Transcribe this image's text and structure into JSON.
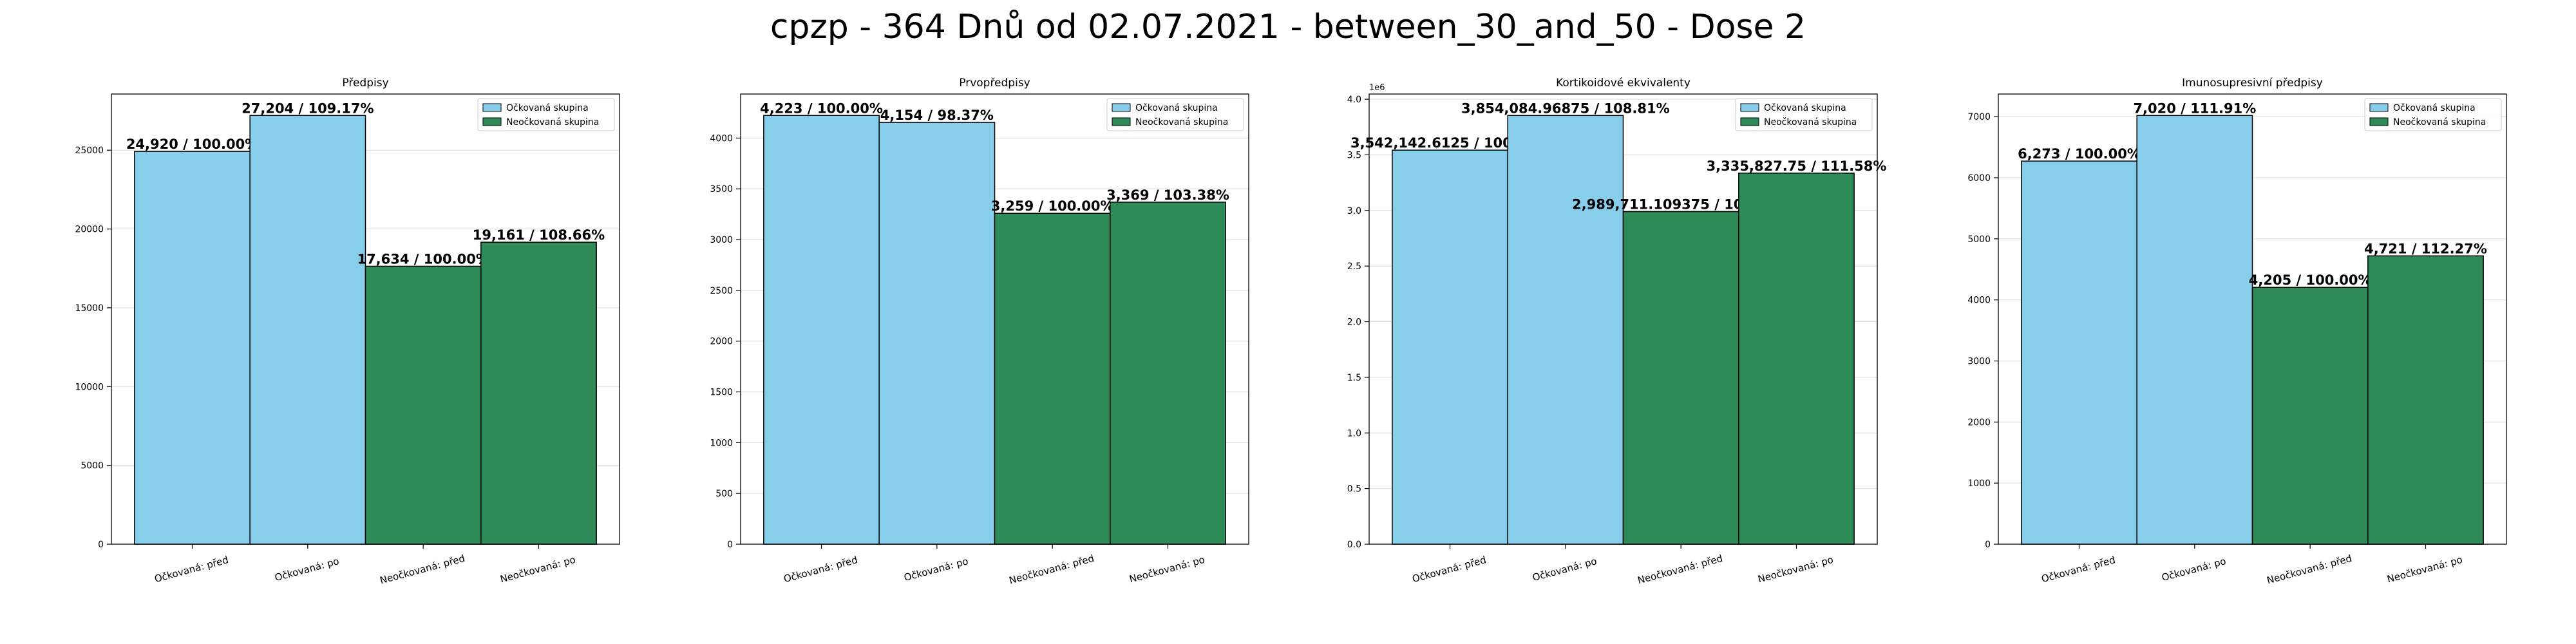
{
  "suptitle": "cpzp - 364 Dnů od 02.07.2021 - between_30_and_50 - Dose 2",
  "colors": {
    "vaccinated": "#87ceeb",
    "unvaccinated": "#2e8b57",
    "edge": "#000000",
    "grid": "#dddddd"
  },
  "legend": {
    "vaccinated": "Očkovaná skupina",
    "unvaccinated": "Neočkovaná skupina"
  },
  "chart_data": [
    {
      "type": "bar",
      "title": "Předpisy",
      "categories": [
        "Očkovaná: před",
        "Očkovaná: po",
        "Neočkovaná: před",
        "Neočkovaná: po"
      ],
      "values": [
        24920,
        27204,
        17634,
        19161
      ],
      "labels": [
        "24,920 / 100.00%",
        "27,204 / 109.17%",
        "17,634 / 100.00%",
        "19,161 / 108.66%"
      ],
      "ylim": [
        0,
        28564
      ],
      "yticks": [
        0,
        5000,
        10000,
        15000,
        20000,
        25000
      ],
      "ytick_labels": [
        "0",
        "5000",
        "10000",
        "15000",
        "20000",
        "25000"
      ],
      "offset_text": "",
      "grid": true,
      "legend_position": "top-right"
    },
    {
      "type": "bar",
      "title": "Prvopředpisy",
      "categories": [
        "Očkovaná: před",
        "Očkovaná: po",
        "Neočkovaná: před",
        "Neočkovaná: po"
      ],
      "values": [
        4223,
        4154,
        3259,
        3369
      ],
      "labels": [
        "4,223 / 100.00%",
        "4,154 / 98.37%",
        "3,259 / 100.00%",
        "3,369 / 103.38%"
      ],
      "ylim": [
        0,
        4434
      ],
      "yticks": [
        0,
        500,
        1000,
        1500,
        2000,
        2500,
        3000,
        3500,
        4000
      ],
      "ytick_labels": [
        "0",
        "500",
        "1000",
        "1500",
        "2000",
        "2500",
        "3000",
        "3500",
        "4000"
      ],
      "offset_text": "",
      "grid": true,
      "legend_position": "top-right"
    },
    {
      "type": "bar",
      "title": "Kortikoidové ekvivalenty",
      "categories": [
        "Očkovaná: před",
        "Očkovaná: po",
        "Neočkovaná: před",
        "Neočkovaná: po"
      ],
      "values": [
        3542142.6125,
        3854084.96875,
        2989711.109375,
        3335827.75
      ],
      "labels": [
        "3,542,142.6125 / 100.00%",
        "3,854,084.96875 / 108.81%",
        "2,989,711.109375 / 100.00%",
        "3,335,827.75 / 111.58%"
      ],
      "ylim": [
        0,
        4046789
      ],
      "yticks": [
        0,
        500000,
        1000000,
        1500000,
        2000000,
        2500000,
        3000000,
        3500000,
        4000000
      ],
      "ytick_labels": [
        "0.0",
        "0.5",
        "1.0",
        "1.5",
        "2.0",
        "2.5",
        "3.0",
        "3.5",
        "4.0"
      ],
      "offset_text": "1e6",
      "grid": true,
      "legend_position": "top-right"
    },
    {
      "type": "bar",
      "title": "Imunosupresivní předpisy",
      "categories": [
        "Očkovaná: před",
        "Očkovaná: po",
        "Neočkovaná: před",
        "Neočkovaná: po"
      ],
      "values": [
        6273,
        7020,
        4205,
        4721
      ],
      "labels": [
        "6,273 / 100.00%",
        "7,020 / 111.91%",
        "4,205 / 100.00%",
        "4,721 / 112.27%"
      ],
      "ylim": [
        0,
        7371
      ],
      "yticks": [
        0,
        1000,
        2000,
        3000,
        4000,
        5000,
        6000,
        7000
      ],
      "ytick_labels": [
        "0",
        "1000",
        "2000",
        "3000",
        "4000",
        "5000",
        "6000",
        "7000"
      ],
      "offset_text": "",
      "grid": true,
      "legend_position": "top-right"
    }
  ]
}
